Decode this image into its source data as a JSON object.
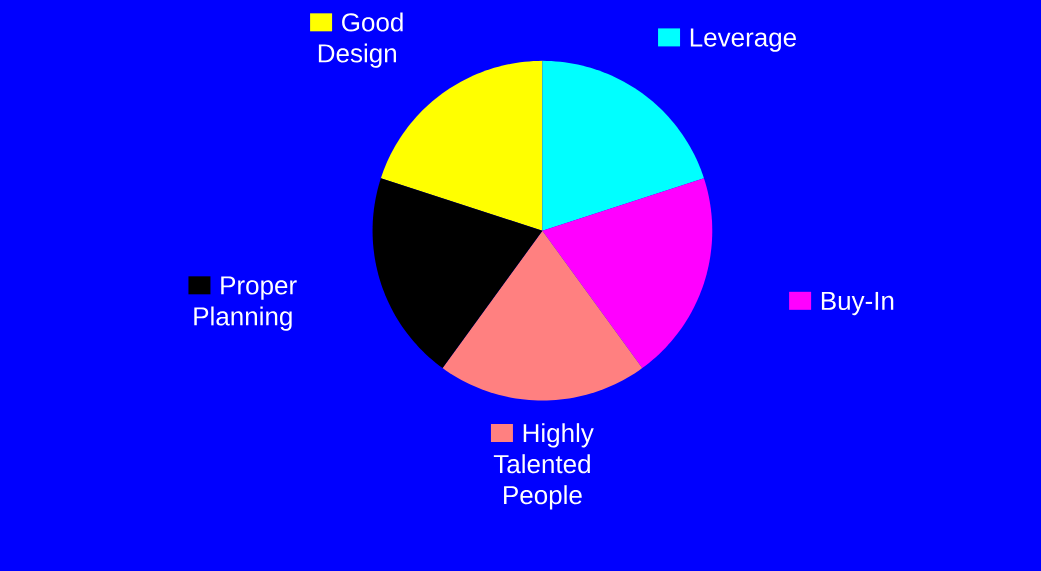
{
  "chart_data": {
    "type": "pie",
    "categories": [
      "Good Design",
      "Leverage",
      "Buy-In",
      "Highly Talented People",
      "Proper Planning"
    ],
    "values": [
      20,
      20,
      20,
      20,
      20
    ],
    "colors": [
      "#ffff00",
      "#00ffff",
      "#ff00ff",
      "#ff8080",
      "#000000"
    ],
    "legend": "right"
  }
}
